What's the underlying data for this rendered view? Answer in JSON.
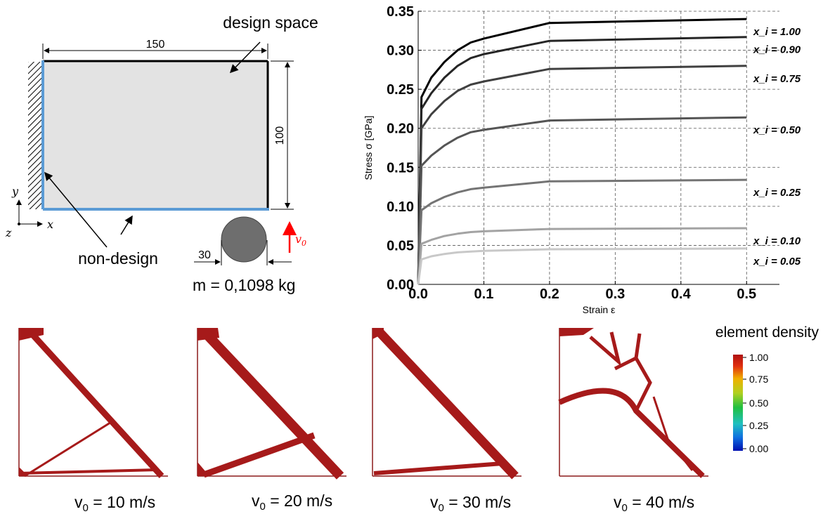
{
  "schematic": {
    "design_space_label": "design space",
    "width_dim": "150",
    "height_dim": "100",
    "non_design_label": "non-design",
    "impactor_dim": "30",
    "velocity_symbol": "v",
    "velocity_sub": "0",
    "mass_label": "m = 0,1098 kg",
    "axis_x": "x",
    "axis_y": "y",
    "axis_z": "z",
    "colors": {
      "design_fill": "#e3e3e3",
      "non_design": "#5b9bd5",
      "impactor": "#6e6e6e",
      "velocity": "#ff0000"
    }
  },
  "chart_data": {
    "type": "line",
    "title": "",
    "xlabel": "Strain ε",
    "ylabel": "Stress σ [GPa]",
    "xlim": [
      0.0,
      0.55
    ],
    "ylim": [
      0.0,
      0.35
    ],
    "x_ticks": [
      "0.0",
      "0.1",
      "0.2",
      "0.3",
      "0.4",
      "0.5"
    ],
    "y_ticks": [
      "0.00",
      "0.05",
      "0.10",
      "0.15",
      "0.20",
      "0.25",
      "0.30",
      "0.35"
    ],
    "grid": true,
    "series": [
      {
        "name": "x_i = 1.00",
        "color": "#000000",
        "x": [
          0,
          0.005,
          0.02,
          0.04,
          0.06,
          0.08,
          0.1,
          0.2,
          0.5
        ],
        "y": [
          0,
          0.24,
          0.265,
          0.285,
          0.3,
          0.31,
          0.315,
          0.335,
          0.34
        ]
      },
      {
        "name": "x_i = 0.90",
        "color": "#262626",
        "x": [
          0,
          0.005,
          0.02,
          0.04,
          0.06,
          0.08,
          0.1,
          0.2,
          0.5
        ],
        "y": [
          0,
          0.225,
          0.245,
          0.265,
          0.28,
          0.29,
          0.295,
          0.312,
          0.317
        ]
      },
      {
        "name": "x_i = 0.75",
        "color": "#404040",
        "x": [
          0,
          0.005,
          0.02,
          0.04,
          0.06,
          0.08,
          0.1,
          0.2,
          0.5
        ],
        "y": [
          0,
          0.2,
          0.218,
          0.235,
          0.248,
          0.256,
          0.26,
          0.276,
          0.28
        ]
      },
      {
        "name": "x_i = 0.50",
        "color": "#555555",
        "x": [
          0,
          0.005,
          0.02,
          0.04,
          0.06,
          0.08,
          0.1,
          0.2,
          0.5
        ],
        "y": [
          0,
          0.152,
          0.165,
          0.178,
          0.188,
          0.195,
          0.198,
          0.21,
          0.214
        ]
      },
      {
        "name": "x_i = 0.25",
        "color": "#747474",
        "x": [
          0,
          0.005,
          0.02,
          0.04,
          0.06,
          0.08,
          0.1,
          0.2,
          0.5
        ],
        "y": [
          0,
          0.095,
          0.104,
          0.112,
          0.118,
          0.122,
          0.124,
          0.132,
          0.134
        ]
      },
      {
        "name": "x_i = 0.10",
        "color": "#a3a3a3",
        "x": [
          0,
          0.005,
          0.02,
          0.04,
          0.06,
          0.08,
          0.1,
          0.2,
          0.5
        ],
        "y": [
          0,
          0.052,
          0.057,
          0.062,
          0.065,
          0.067,
          0.068,
          0.071,
          0.072
        ]
      },
      {
        "name": "x_i = 0.05",
        "color": "#c8c8c8",
        "x": [
          0,
          0.005,
          0.02,
          0.04,
          0.06,
          0.08,
          0.1,
          0.2,
          0.5
        ],
        "y": [
          0,
          0.032,
          0.036,
          0.039,
          0.041,
          0.042,
          0.043,
          0.045,
          0.046
        ]
      }
    ]
  },
  "results": {
    "colorbar_title": "element density",
    "colorbar_ticks": [
      "1.00",
      "0.75",
      "0.50",
      "0.25",
      "0.00"
    ],
    "panels": [
      {
        "v_symbol": "v",
        "v_sub": "0",
        "v_text": " = 10 m/s"
      },
      {
        "v_symbol": "v",
        "v_sub": "0",
        "v_text": " = 20 m/s"
      },
      {
        "v_symbol": "v",
        "v_sub": "0",
        "v_text": " = 30 m/s"
      },
      {
        "v_symbol": "v",
        "v_sub": "0",
        "v_text": " = 40 m/s"
      }
    ],
    "colors": {
      "structure": "#a61a1a",
      "frame": "#8b1a1a"
    }
  }
}
